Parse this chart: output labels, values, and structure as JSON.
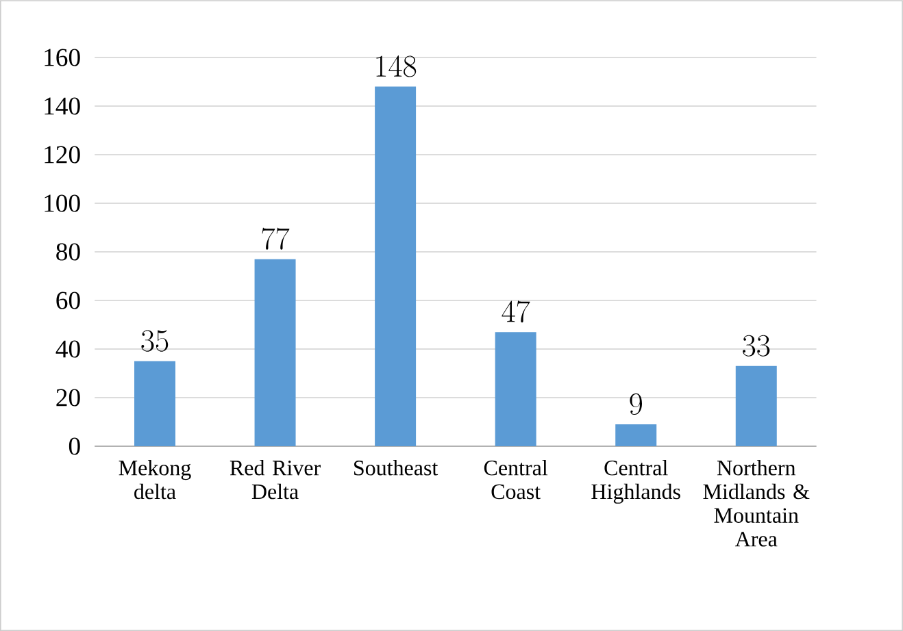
{
  "chart_data": {
    "type": "bar",
    "categories": [
      "Mekong delta",
      "Red River Delta",
      "Southeast",
      "Central Coast",
      "Central Highlands",
      "Northern Midlands & Mountain Area"
    ],
    "values": [
      35,
      77,
      148,
      47,
      9,
      33
    ],
    "color": "#5b9bd5",
    "ylim": [
      0,
      160
    ],
    "yticks": [
      0,
      20,
      40,
      60,
      80,
      100,
      120,
      140,
      160
    ],
    "grid": "y",
    "data_labels": true
  }
}
